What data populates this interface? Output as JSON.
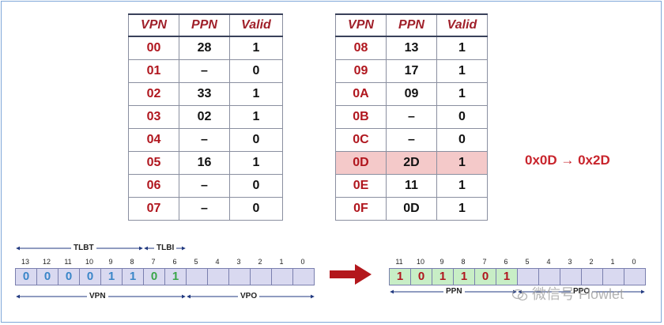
{
  "headers": {
    "vpn": "VPN",
    "ppn": "PPN",
    "valid": "Valid"
  },
  "page_table_left": [
    {
      "vpn": "00",
      "ppn": "28",
      "valid": "1"
    },
    {
      "vpn": "01",
      "ppn": "–",
      "valid": "0"
    },
    {
      "vpn": "02",
      "ppn": "33",
      "valid": "1"
    },
    {
      "vpn": "03",
      "ppn": "02",
      "valid": "1"
    },
    {
      "vpn": "04",
      "ppn": "–",
      "valid": "0"
    },
    {
      "vpn": "05",
      "ppn": "16",
      "valid": "1"
    },
    {
      "vpn": "06",
      "ppn": "–",
      "valid": "0"
    },
    {
      "vpn": "07",
      "ppn": "–",
      "valid": "0"
    }
  ],
  "page_table_right": [
    {
      "vpn": "08",
      "ppn": "13",
      "valid": "1"
    },
    {
      "vpn": "09",
      "ppn": "17",
      "valid": "1"
    },
    {
      "vpn": "0A",
      "ppn": "09",
      "valid": "1"
    },
    {
      "vpn": "0B",
      "ppn": "–",
      "valid": "0"
    },
    {
      "vpn": "0C",
      "ppn": "–",
      "valid": "0"
    },
    {
      "vpn": "0D",
      "ppn": "2D",
      "valid": "1",
      "highlight": true
    },
    {
      "vpn": "0E",
      "ppn": "11",
      "valid": "1"
    },
    {
      "vpn": "0F",
      "ppn": "0D",
      "valid": "1"
    }
  ],
  "translation_note": "0x0D → 0x2D",
  "virtual_address": {
    "bit_numbers": [
      "13",
      "12",
      "11",
      "10",
      "9",
      "8",
      "7",
      "6",
      "5",
      "4",
      "3",
      "2",
      "1",
      "0"
    ],
    "bits": [
      "0",
      "0",
      "0",
      "0",
      "1",
      "1",
      "0",
      "1",
      "",
      "",
      "",
      "",
      "",
      ""
    ],
    "tlbt_label": "TLBT",
    "tlbi_label": "TLBI",
    "vpn_label": "VPN",
    "vpo_label": "VPO"
  },
  "physical_address": {
    "bit_numbers": [
      "11",
      "10",
      "9",
      "8",
      "7",
      "6",
      "5",
      "4",
      "3",
      "2",
      "1",
      "0"
    ],
    "bits": [
      "1",
      "0",
      "1",
      "1",
      "0",
      "1",
      "",
      "",
      "",
      "",
      "",
      ""
    ],
    "ppn_label": "PPN",
    "ppo_label": "PPO"
  },
  "watermark": "微信号 Flowlet",
  "colors": {
    "accent_red": "#c8242c",
    "highlight": "#f4c9c9",
    "bit_fill": "#d9d9f0",
    "ppn_fill": "#c8eec6"
  }
}
